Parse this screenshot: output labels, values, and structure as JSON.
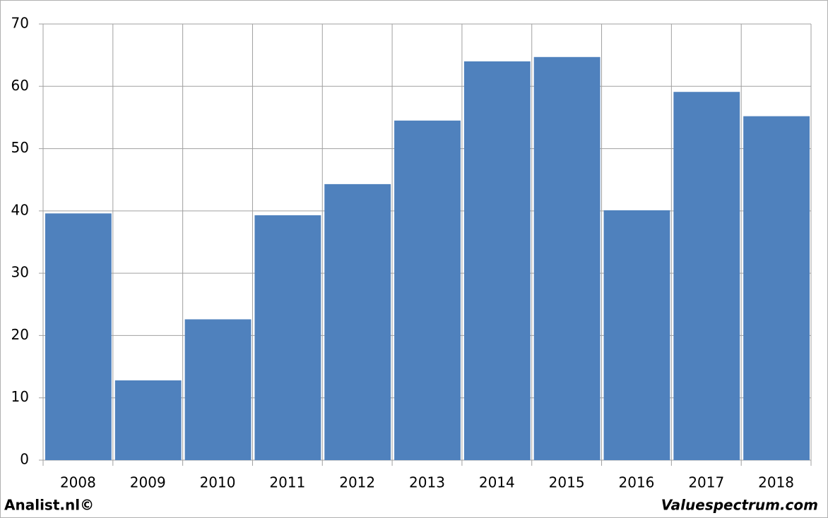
{
  "chart_data": {
    "type": "bar",
    "categories": [
      "2008",
      "2009",
      "2010",
      "2011",
      "2012",
      "2013",
      "2014",
      "2015",
      "2016",
      "2017",
      "2018"
    ],
    "values": [
      39.6,
      12.8,
      22.6,
      39.3,
      44.3,
      54.5,
      64.0,
      64.7,
      40.1,
      59.1,
      55.2
    ],
    "color": "#4f81bd",
    "ylim": [
      0,
      70
    ],
    "yticks": [
      0,
      10,
      20,
      30,
      40,
      50,
      60,
      70
    ],
    "grid": true,
    "footer_left": "Analist.nl©",
    "footer_right": "Valuespectrum.com"
  }
}
